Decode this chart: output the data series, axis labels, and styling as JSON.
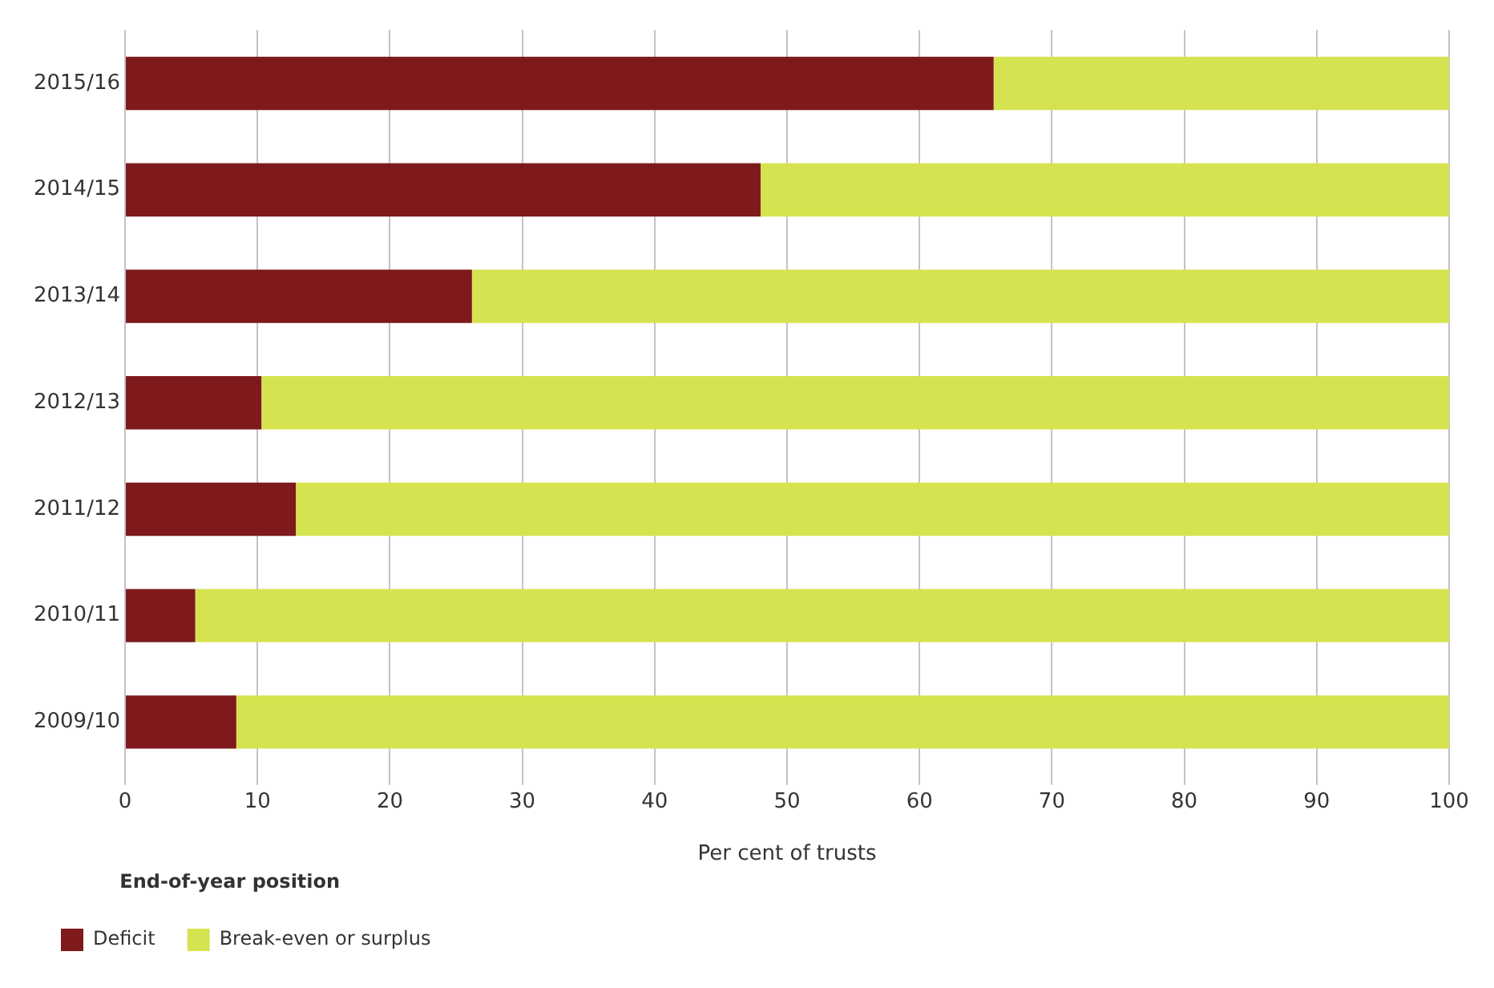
{
  "chart_data": {
    "type": "bar",
    "orientation": "horizontal",
    "stacked": true,
    "xlabel": "Per cent of trusts",
    "legend_title": "End-of-year position",
    "legend": "bottom",
    "grid": "x",
    "categories": [
      "2015/16",
      "2014/15",
      "2013/14",
      "2012/13",
      "2011/12",
      "2010/11",
      "2009/10"
    ],
    "series": [
      {
        "name": "Deficit",
        "color": "#7e1a1c",
        "values": [
          65.6,
          48.0,
          26.2,
          10.3,
          12.9,
          5.3,
          8.4
        ]
      },
      {
        "name": "Break-even or surplus",
        "color": "#d6e350",
        "values": [
          34.4,
          52.0,
          73.8,
          89.7,
          87.1,
          94.7,
          91.6
        ]
      }
    ],
    "xlim": [
      0,
      100
    ],
    "xticks": [
      0,
      10,
      20,
      30,
      40,
      50,
      60,
      70,
      80,
      90,
      100
    ]
  }
}
